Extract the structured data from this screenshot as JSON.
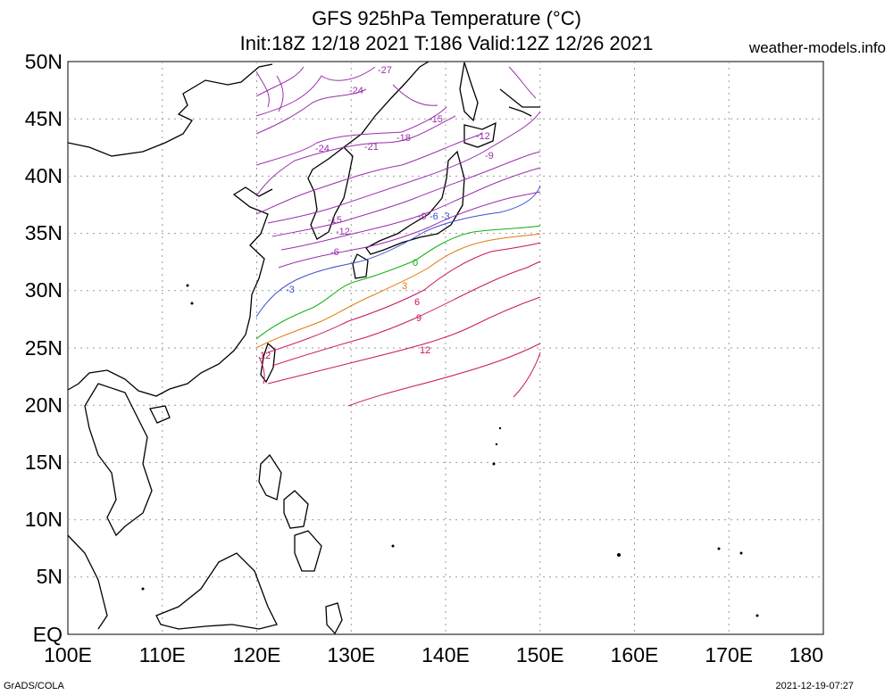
{
  "title": {
    "line1": "GFS 925hPa Temperature (°C)",
    "line2": "Init:18Z 12/18 2021 T:186 Valid:12Z 12/26 2021"
  },
  "site": "weather-models.info",
  "footer": {
    "left": "GrADS/COLA",
    "right": "2021-12-19-07:27"
  },
  "lat_labels": [
    "50N",
    "45N",
    "40N",
    "35N",
    "30N",
    "25N",
    "20N",
    "15N",
    "10N",
    "5N",
    "EQ"
  ],
  "lon_labels": [
    "100E",
    "110E",
    "120E",
    "130E",
    "140E",
    "150E",
    "160E",
    "170E",
    "180"
  ],
  "contour_labels": [
    {
      "text": "-27",
      "color": "#9b2fae"
    },
    {
      "text": "-24",
      "color": "#9b2fae"
    },
    {
      "text": "-24",
      "color": "#9b2fae"
    },
    {
      "text": "-21",
      "color": "#9b2fae"
    },
    {
      "text": "-18",
      "color": "#9b2fae"
    },
    {
      "text": "-15",
      "color": "#9b2fae"
    },
    {
      "text": "-15",
      "color": "#9b2fae"
    },
    {
      "text": "-12",
      "color": "#9b2fae"
    },
    {
      "text": "-12",
      "color": "#9b2fae"
    },
    {
      "text": "-9",
      "color": "#9b2fae"
    },
    {
      "text": "-9",
      "color": "#9b2fae"
    },
    {
      "text": "-6",
      "color": "#9b2fae"
    },
    {
      "text": "-6",
      "color": "#3a50d0"
    },
    {
      "text": "-3",
      "color": "#3a50d0"
    },
    {
      "text": "-3",
      "color": "#3a50d0"
    },
    {
      "text": "0",
      "color": "#10b010"
    },
    {
      "text": "3",
      "color": "#e07a10"
    },
    {
      "text": "6",
      "color": "#c81464"
    },
    {
      "text": "9",
      "color": "#c81464"
    },
    {
      "text": "12",
      "color": "#c81464"
    },
    {
      "text": "12",
      "color": "#c81464"
    }
  ],
  "colors": {
    "cold": "#9b2fae",
    "minus3": "#3a50d0",
    "zero": "#10b010",
    "plus3": "#e07a10",
    "warm": "#c81464",
    "grid": "#999999",
    "coast": "#000000"
  }
}
